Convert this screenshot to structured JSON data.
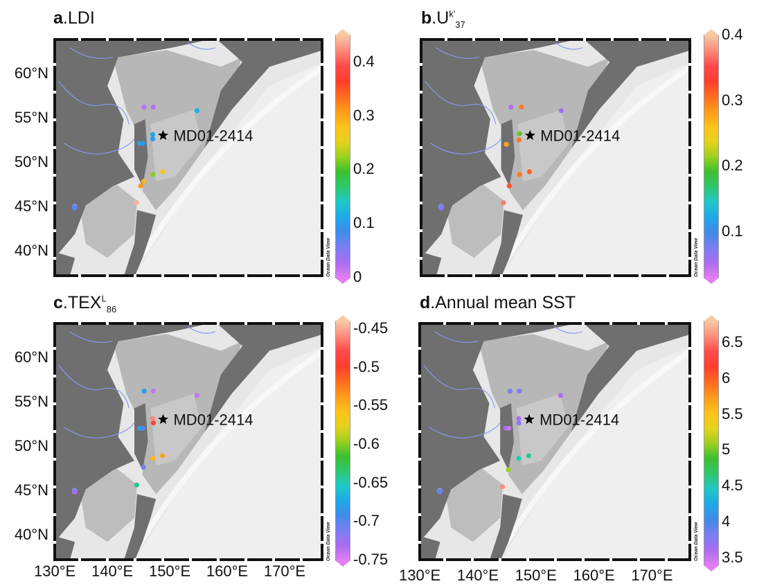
{
  "latitude_labels": [
    "60°N",
    "55°N",
    "50°N",
    "45°N",
    "40°N"
  ],
  "longitude_labels": [
    "130°E",
    "140°E",
    "150°E",
    "160°E",
    "170°E"
  ],
  "core_label": "MD01-2414",
  "watermark": "Ocean Data View",
  "panels": [
    {
      "letter": "a",
      "name": "LDI",
      "sup": "",
      "sub": "",
      "colorbar_ticks": [
        "0.4",
        "0.3",
        "0.2",
        "0.1",
        "0"
      ],
      "range": [
        0,
        0.45
      ],
      "points": [
        {
          "lon": 145.8,
          "lat": 56.2,
          "v": 0.02
        },
        {
          "lon": 147.4,
          "lat": 56.2,
          "v": 0.02
        },
        {
          "lon": 155.0,
          "lat": 55.8,
          "v": 0.12
        },
        {
          "lon": 147.3,
          "lat": 53.1,
          "v": 0.11
        },
        {
          "lon": 147.3,
          "lat": 52.6,
          "v": 0.1
        },
        {
          "lon": 145.0,
          "lat": 52.1,
          "v": 0.11
        },
        {
          "lon": 145.6,
          "lat": 52.1,
          "v": 0.1
        },
        {
          "lon": 147.3,
          "lat": 48.6,
          "v": 0.22
        },
        {
          "lon": 149.0,
          "lat": 48.9,
          "v": 0.27
        },
        {
          "lon": 145.7,
          "lat": 47.8,
          "v": 0.29
        },
        {
          "lon": 145.2,
          "lat": 47.3,
          "v": 0.31
        },
        {
          "lon": 144.5,
          "lat": 45.4,
          "v": 0.44
        },
        {
          "lon": 133.7,
          "lat": 44.8,
          "v": 0.07
        }
      ]
    },
    {
      "letter": "b",
      "name": "U",
      "sup": "k'",
      "sub": "37",
      "colorbar_ticks": [
        "0.4",
        "0.3",
        "0.2",
        "0.1"
      ],
      "range": [
        0.03,
        0.4
      ],
      "points": [
        {
          "lon": 145.8,
          "lat": 56.2,
          "v": 0.05
        },
        {
          "lon": 147.6,
          "lat": 56.2,
          "v": 0.3
        },
        {
          "lon": 154.5,
          "lat": 55.8,
          "v": 0.06
        },
        {
          "lon": 147.3,
          "lat": 53.2,
          "v": 0.2
        },
        {
          "lon": 147.2,
          "lat": 52.5,
          "v": 0.3
        },
        {
          "lon": 145.0,
          "lat": 52.0,
          "v": 0.28
        },
        {
          "lon": 147.3,
          "lat": 48.6,
          "v": 0.3
        },
        {
          "lon": 149.0,
          "lat": 48.9,
          "v": 0.31
        },
        {
          "lon": 145.5,
          "lat": 47.3,
          "v": 0.32
        },
        {
          "lon": 144.5,
          "lat": 45.4,
          "v": 0.37
        },
        {
          "lon": 133.7,
          "lat": 44.8,
          "v": 0.07
        }
      ]
    },
    {
      "letter": "c",
      "name": "TEX",
      "sup": "L",
      "sub": "86",
      "colorbar_ticks": [
        "-0.45",
        "-0.5",
        "-0.55",
        "-0.6",
        "-0.65",
        "-0.7",
        "-0.75"
      ],
      "range": [
        -0.75,
        -0.44
      ],
      "points": [
        {
          "lon": 145.8,
          "lat": 56.2,
          "v": -0.68
        },
        {
          "lon": 147.4,
          "lat": 56.2,
          "v": -0.74
        },
        {
          "lon": 155.0,
          "lat": 55.7,
          "v": -0.74
        },
        {
          "lon": 147.3,
          "lat": 53.1,
          "v": -0.46
        },
        {
          "lon": 147.4,
          "lat": 52.6,
          "v": -0.49
        },
        {
          "lon": 145.0,
          "lat": 52.0,
          "v": -0.68
        },
        {
          "lon": 145.6,
          "lat": 52.0,
          "v": -0.7
        },
        {
          "lon": 147.3,
          "lat": 48.6,
          "v": -0.55
        },
        {
          "lon": 149.0,
          "lat": 48.9,
          "v": -0.54
        },
        {
          "lon": 145.7,
          "lat": 47.6,
          "v": -0.71
        },
        {
          "lon": 144.5,
          "lat": 45.6,
          "v": -0.64
        },
        {
          "lon": 133.7,
          "lat": 44.8,
          "v": -0.73
        }
      ]
    },
    {
      "letter": "d",
      "name": "Annual mean SST",
      "sup": "",
      "sub": "",
      "colorbar_ticks": [
        "6.5",
        "6",
        "5.5",
        "5",
        "4.5",
        "4",
        "3.5"
      ],
      "range": [
        3.4,
        6.8
      ],
      "points": [
        {
          "lon": 145.8,
          "lat": 56.2,
          "v": 3.8
        },
        {
          "lon": 147.4,
          "lat": 56.2,
          "v": 3.8
        },
        {
          "lon": 154.5,
          "lat": 55.7,
          "v": 3.6
        },
        {
          "lon": 147.3,
          "lat": 53.1,
          "v": 3.6
        },
        {
          "lon": 147.3,
          "lat": 52.6,
          "v": 3.7
        },
        {
          "lon": 145.0,
          "lat": 52.0,
          "v": 3.6
        },
        {
          "lon": 145.6,
          "lat": 52.0,
          "v": 3.5
        },
        {
          "lon": 147.3,
          "lat": 48.6,
          "v": 4.5
        },
        {
          "lon": 149.0,
          "lat": 48.9,
          "v": 4.6
        },
        {
          "lon": 145.5,
          "lat": 47.3,
          "v": 5.1
        },
        {
          "lon": 144.5,
          "lat": 45.4,
          "v": 6.6
        },
        {
          "lon": 133.7,
          "lat": 44.8,
          "v": 3.9
        }
      ]
    }
  ],
  "core_site": {
    "lon": 149.1,
    "lat": 53.0
  },
  "map_extent": {
    "lon": [
      130,
      177
    ],
    "lat": [
      37,
      64
    ]
  }
}
